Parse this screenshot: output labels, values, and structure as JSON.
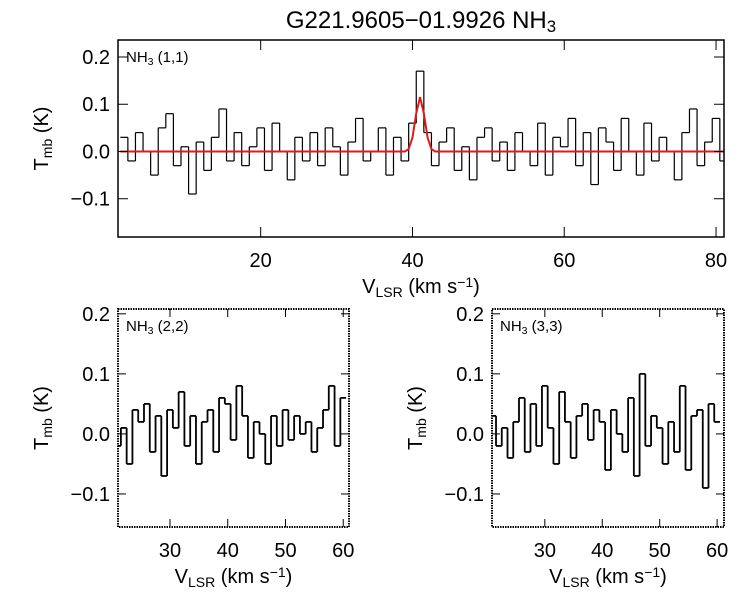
{
  "chart_data": [
    {
      "type": "line",
      "title": [
        "G221.9605−01.9926 NH",
        {
          "sub": "3"
        }
      ],
      "panel_label": [
        "NH",
        {
          "sub": "3"
        },
        " (1,1)"
      ],
      "xlabel": [
        "V",
        {
          "sub": "LSR"
        },
        " (km s",
        {
          "sup": "−1"
        },
        ")"
      ],
      "ylabel": [
        "T",
        {
          "sub": "mb"
        },
        " (K)"
      ],
      "xlim": [
        1.2,
        81.05
      ],
      "ylim": [
        -0.181,
        0.236
      ],
      "xticks": [
        20,
        40,
        60,
        80
      ],
      "yticks": [
        {
          "value": -0.1,
          "label": "−0.1"
        },
        {
          "value": 0,
          "label": "0.0"
        },
        0.1,
        0.2
      ],
      "series": [
        {
          "drawstyle": "steps-mid",
          "color": "#000000",
          "x": [
            2,
            3,
            4,
            5,
            6,
            7,
            8,
            9,
            10,
            11,
            12,
            13,
            14,
            15,
            16,
            17,
            18,
            19,
            20,
            21,
            22,
            23,
            24,
            25,
            26,
            27,
            28,
            29,
            30,
            31,
            32,
            33,
            34,
            35,
            36,
            37,
            38,
            39,
            40,
            41,
            42,
            43,
            44,
            45,
            46,
            47,
            48,
            49,
            50,
            51,
            52,
            53,
            54,
            55,
            56,
            57,
            58,
            59,
            60,
            61,
            62,
            63,
            64,
            65,
            66,
            67,
            68,
            69,
            70,
            71,
            72,
            73,
            74,
            75,
            76,
            77,
            78,
            79,
            80,
            81
          ],
          "values": [
            0.03,
            -0.02,
            0.04,
            0.0,
            -0.05,
            0.05,
            0.08,
            -0.03,
            0.01,
            -0.09,
            0.02,
            -0.04,
            0.03,
            0.09,
            -0.02,
            0.04,
            -0.03,
            0.01,
            0.05,
            -0.04,
            0.06,
            0.0,
            -0.06,
            0.03,
            -0.02,
            0.04,
            -0.03,
            0.05,
            0.01,
            -0.05,
            0.02,
            0.07,
            -0.02,
            0.0,
            0.05,
            -0.05,
            0.03,
            -0.02,
            0.06,
            0.17,
            0.04,
            -0.03,
            0.02,
            0.05,
            -0.04,
            0.01,
            -0.06,
            0.03,
            0.05,
            -0.02,
            0.02,
            -0.04,
            0.04,
            0.0,
            -0.03,
            0.06,
            -0.05,
            0.03,
            0.01,
            0.07,
            -0.03,
            0.04,
            -0.07,
            0.05,
            0.02,
            -0.04,
            0.07,
            0.0,
            -0.05,
            0.06,
            -0.02,
            0.03,
            0.0,
            -0.06,
            0.04,
            0.09,
            -0.03,
            0.02,
            0.07,
            -0.02
          ]
        },
        {
          "drawstyle": "line",
          "color": "#e0191b",
          "x": [
            1.5,
            38,
            39,
            39.5,
            40,
            40.5,
            41,
            41.5,
            42,
            42.5,
            43,
            44,
            81
          ],
          "values": [
            0,
            0,
            0,
            0.005,
            0.029,
            0.081,
            0.115,
            0.081,
            0.029,
            0.005,
            0,
            0,
            0
          ]
        }
      ]
    },
    {
      "type": "line",
      "panel_label": [
        "NH",
        {
          "sub": "3"
        },
        " (2,2)"
      ],
      "xlabel": [
        "V",
        {
          "sub": "LSR"
        },
        " (km s",
        {
          "sup": "−1"
        },
        ")"
      ],
      "ylabel": [
        "T",
        {
          "sub": "mb"
        },
        " (K)"
      ],
      "xlim": [
        21.0,
        61.0
      ],
      "ylim": [
        -0.155,
        0.208
      ],
      "xticks": [
        30,
        40,
        50,
        60
      ],
      "yticks": [
        {
          "value": -0.1,
          "label": "−0.1"
        },
        {
          "value": 0,
          "label": "0.0"
        },
        0.1,
        0.2
      ],
      "series": [
        {
          "drawstyle": "steps-mid",
          "color": "#000000",
          "x": [
            21,
            22,
            23,
            24,
            25,
            26,
            27,
            28,
            29,
            30,
            31,
            32,
            33,
            34,
            35,
            36,
            37,
            38,
            39,
            40,
            41,
            42,
            43,
            44,
            45,
            46,
            47,
            48,
            49,
            50,
            51,
            52,
            53,
            54,
            55,
            56,
            57,
            58,
            59,
            60
          ],
          "values": [
            -0.02,
            0.01,
            -0.05,
            0.04,
            0.02,
            0.05,
            -0.03,
            0.03,
            -0.07,
            0.04,
            0.01,
            0.07,
            -0.02,
            0.03,
            -0.05,
            0.02,
            0.04,
            -0.03,
            0.06,
            0.05,
            -0.01,
            0.08,
            0.03,
            -0.04,
            0.02,
            0.0,
            -0.05,
            0.03,
            -0.02,
            0.04,
            -0.01,
            0.03,
            0.0,
            0.02,
            -0.03,
            0.01,
            0.04,
            0.08,
            -0.02,
            0.06
          ]
        }
      ]
    },
    {
      "type": "line",
      "panel_label": [
        "NH",
        {
          "sub": "3"
        },
        " (3,3)"
      ],
      "xlabel": [
        "V",
        {
          "sub": "LSR"
        },
        " (km s",
        {
          "sup": "−1"
        },
        ")"
      ],
      "ylabel": [
        "T",
        {
          "sub": "mb"
        },
        " (K)"
      ],
      "xlim": [
        20.8,
        61.2
      ],
      "ylim": [
        -0.155,
        0.208
      ],
      "xticks": [
        30,
        40,
        50,
        60
      ],
      "yticks": [
        {
          "value": -0.1,
          "label": "−0.1"
        },
        {
          "value": 0,
          "label": "0.0"
        },
        0.1,
        0.2
      ],
      "series": [
        {
          "drawstyle": "steps-mid",
          "color": "#000000",
          "x": [
            21,
            22,
            23,
            24,
            25,
            26,
            27,
            28,
            29,
            30,
            31,
            32,
            33,
            34,
            35,
            36,
            37,
            38,
            39,
            40,
            41,
            42,
            43,
            44,
            45,
            46,
            47,
            48,
            49,
            50,
            51,
            52,
            53,
            54,
            55,
            56,
            57,
            58,
            59,
            60
          ],
          "values": [
            0.03,
            -0.02,
            0.01,
            -0.04,
            0.02,
            0.06,
            -0.03,
            0.05,
            -0.02,
            0.08,
            0.01,
            -0.05,
            0.07,
            0.02,
            -0.04,
            0.03,
            0.05,
            -0.01,
            0.04,
            0.02,
            -0.06,
            0.04,
            0.0,
            -0.03,
            0.06,
            -0.07,
            0.1,
            -0.02,
            0.03,
            0.01,
            -0.05,
            0.02,
            -0.03,
            0.08,
            -0.06,
            0.03,
            0.04,
            -0.09,
            0.05,
            0.02
          ]
        }
      ]
    }
  ]
}
